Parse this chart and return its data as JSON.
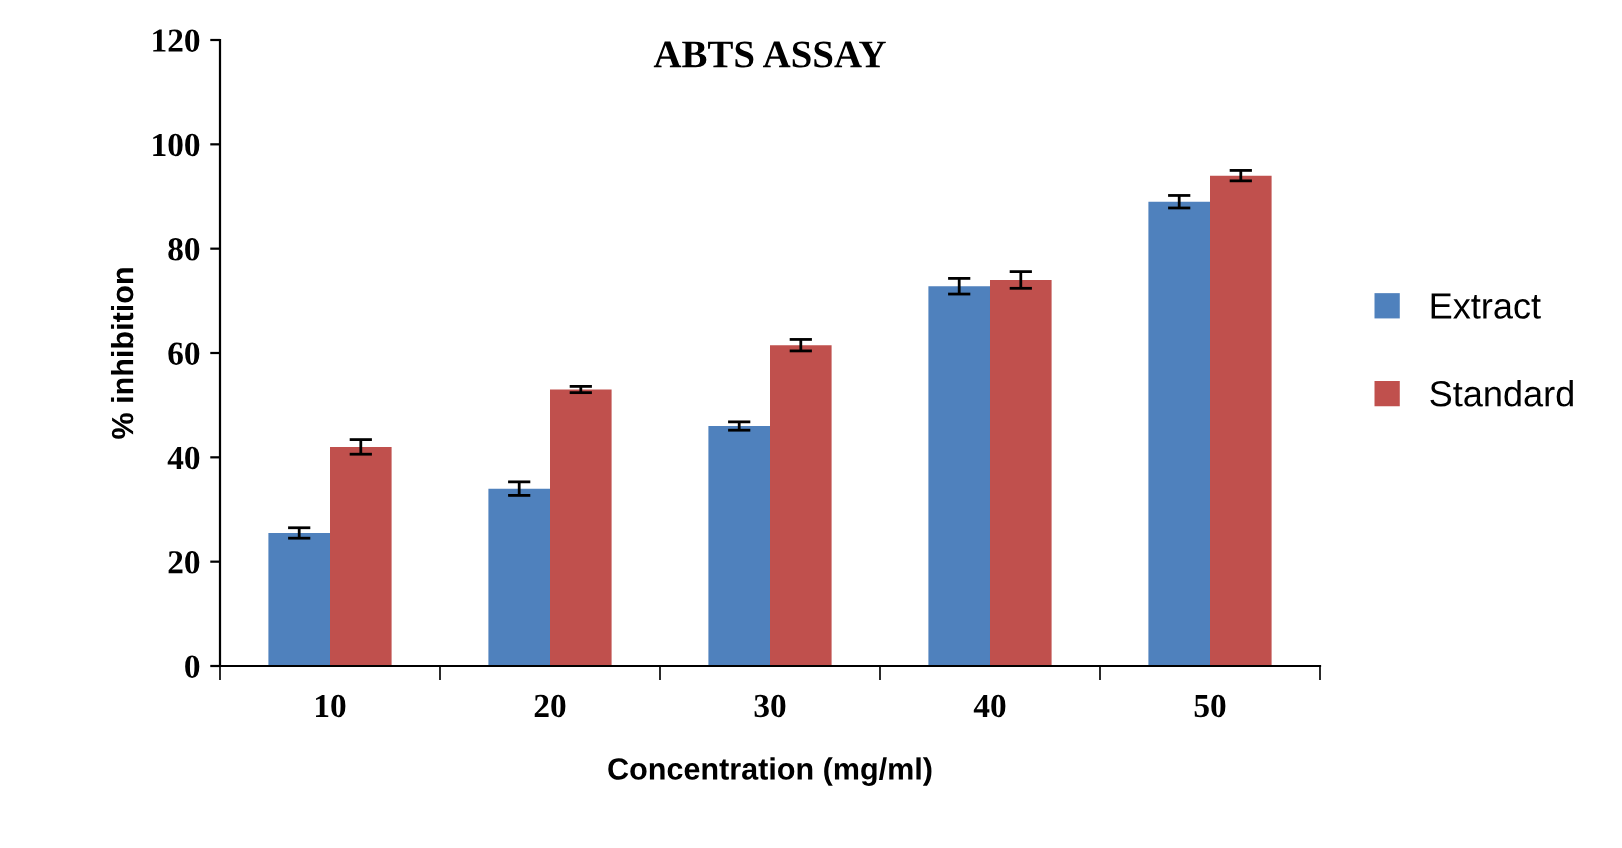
{
  "chart_data": {
    "type": "bar",
    "title": "ABTS ASSAY",
    "xlabel": "Concentration (mg/ml)",
    "ylabel": "% inhibition",
    "categories": [
      "10",
      "20",
      "30",
      "40",
      "50"
    ],
    "series": [
      {
        "name": "Extract",
        "color": "#4f81bd",
        "values": [
          25.5,
          34,
          46,
          72.8,
          89
        ],
        "errors": [
          1,
          1.3,
          0.8,
          1.5,
          1.2
        ]
      },
      {
        "name": "Standard",
        "color": "#c0504d",
        "values": [
          42,
          53,
          61.5,
          74,
          94
        ],
        "errors": [
          1.4,
          0.6,
          1.1,
          1.6,
          1
        ]
      }
    ],
    "ylim": [
      0,
      120
    ],
    "yticks": [
      0,
      20,
      40,
      60,
      80,
      100,
      120
    ],
    "grid": false,
    "legend": "right"
  }
}
